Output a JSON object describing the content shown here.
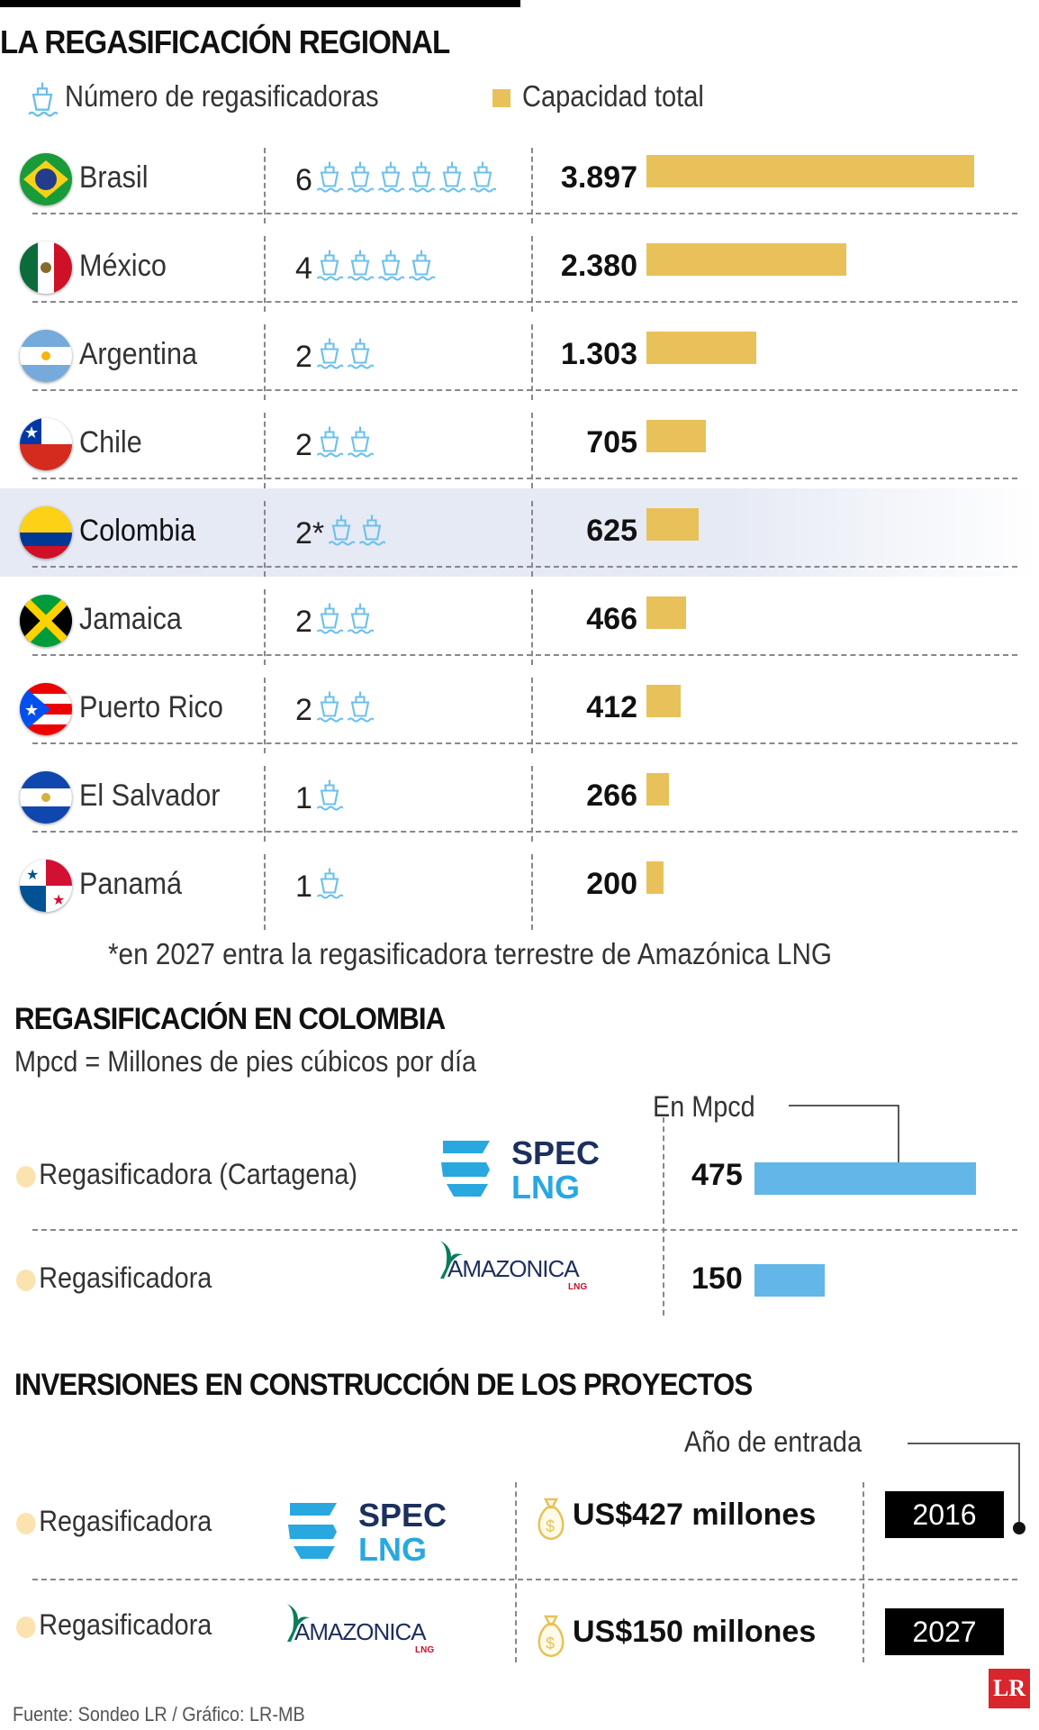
{
  "title": "LA REGASIFICACIÓN REGIONAL",
  "legend": {
    "count_label": "Número de regasificadoras",
    "capacity_label": "Capacidad total",
    "count_icon": "ship-icon",
    "capacity_color": "#e8c15a"
  },
  "chart_data": {
    "type": "bar",
    "title": "LA REGASIFICACIÓN REGIONAL",
    "categories": [
      "Brasil",
      "México",
      "Argentina",
      "Chile",
      "Colombia",
      "Jamaica",
      "Puerto Rico",
      "El Salvador",
      "Panamá"
    ],
    "count_labels": [
      "6",
      "4",
      "2",
      "2",
      "2*",
      "2",
      "2",
      "1",
      "1"
    ],
    "counts": [
      6,
      4,
      2,
      2,
      2,
      2,
      2,
      1,
      1
    ],
    "value_labels": [
      "3.897",
      "2.380",
      "1.303",
      "705",
      "625",
      "466",
      "412",
      "266",
      "200"
    ],
    "values": [
      3897,
      2380,
      1303,
      705,
      625,
      466,
      412,
      266,
      200
    ],
    "highlight": "Colombia",
    "bar_color": "#e8c15a"
  },
  "footnote": "*en 2027 entra la regasificadora terrestre de Amazónica LNG",
  "colombia": {
    "title": "REGASIFICACIÓN EN COLOMBIA",
    "subtitle": "Mpcd = Millones de pies cúbicos por día",
    "unit_label": "En Mpcd",
    "bar_color": "#62b6e8",
    "rows": [
      {
        "label": "Regasificadora (Cartagena)",
        "logo": "SPEC LNG",
        "value_label": "475",
        "value": 475
      },
      {
        "label": "Regasificadora",
        "logo": "AMAZONICA LNG",
        "value_label": "150",
        "value": 150
      }
    ]
  },
  "investments": {
    "title": "INVERSIONES EN CONSTRUCCIÓN DE LOS PROYECTOS",
    "year_label": "Año de entrada",
    "rows": [
      {
        "label": "Regasificadora",
        "logo": "SPEC LNG",
        "amount": "US$427 millones",
        "year": "2016"
      },
      {
        "label": "Regasificadora",
        "logo": "AMAZONICA LNG",
        "amount": "US$150 millones",
        "year": "2027"
      }
    ]
  },
  "source": "Fuente: Sondeo LR / Gráfico: LR-MB",
  "brand_logo": "LR"
}
